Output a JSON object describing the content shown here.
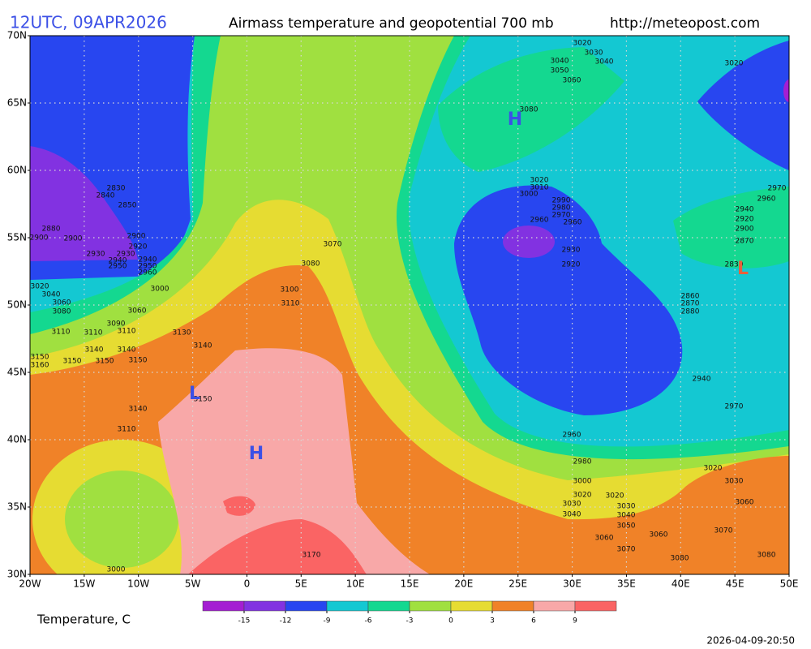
{
  "header": {
    "run": "12UTC, 09APR2026",
    "title": "Airmass temperature and geopotential 700 mb",
    "url": "http://meteopost.com"
  },
  "map": {
    "lat_ticks": [
      "70N",
      "65N",
      "60N",
      "55N",
      "50N",
      "45N",
      "40N",
      "35N",
      "30N"
    ],
    "lon_ticks": [
      "20W",
      "15W",
      "10W",
      "5W",
      "0",
      "5E",
      "10E",
      "15E",
      "20E",
      "25E",
      "30E",
      "35E",
      "40E",
      "45E",
      "50E"
    ]
  },
  "legend": {
    "title": "Temperature, C",
    "levels": [
      -15,
      -12,
      -9,
      -6,
      -3,
      0,
      3,
      6,
      9
    ],
    "colors": [
      "#a41ed2",
      "#8232e1",
      "#2846f0",
      "#14c8d2",
      "#14d890",
      "#a0e040",
      "#e6dc32",
      "#f08228",
      "#f8a8a8",
      "#fa6464"
    ]
  },
  "centers": [
    {
      "label": "H",
      "color": "#3c50e6"
    },
    {
      "label": "H",
      "color": "#3c50e6"
    },
    {
      "label": "L",
      "color": "#3c50e6"
    },
    {
      "label": "L",
      "color": "#e8603c"
    }
  ],
  "contour_labels": [
    3020,
    3030,
    3040,
    3040,
    3050,
    3060,
    3020,
    3080,
    3020,
    3010,
    3000,
    2990,
    2980,
    2970,
    2960,
    2960,
    2970,
    2960,
    2940,
    2920,
    2900,
    2870,
    2830,
    2840,
    2850,
    2880,
    2900,
    2900,
    2900,
    2920,
    2930,
    2930,
    2940,
    2940,
    2950,
    2950,
    2960,
    3000,
    3020,
    3040,
    3060,
    3080,
    3060,
    3090,
    3110,
    3110,
    3110,
    3130,
    3140,
    3140,
    3140,
    3150,
    3160,
    3150,
    3150,
    3150,
    3070,
    3080,
    3100,
    3110,
    3150,
    3140,
    3110,
    3000,
    3170,
    2930,
    2920,
    2860,
    2870,
    2880,
    2940,
    2970,
    2960,
    2980,
    3000,
    3020,
    3030,
    3060,
    3020,
    3020,
    3030,
    3030,
    3040,
    3040,
    3050,
    3060,
    3060,
    3070,
    3070,
    3080,
    3080,
    2830
  ],
  "timestamp": "2026-04-09-20:50"
}
